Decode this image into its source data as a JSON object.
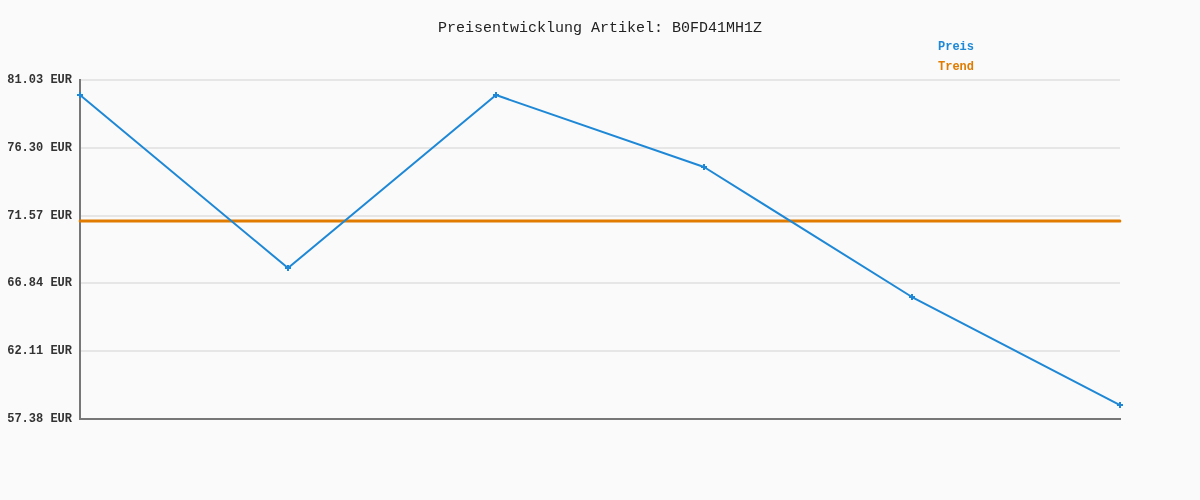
{
  "chart_data": {
    "type": "line",
    "title": "Preisentwicklung Artikel: B0FD41MH1Z",
    "categories": [
      null,
      null,
      null,
      null,
      null,
      null
    ],
    "series": [
      {
        "name": "Preis",
        "color": "#1e88d6",
        "marker": "cross",
        "values": [
          79.98,
          67.91,
          79.98,
          74.96,
          65.89,
          58.35
        ]
      },
      {
        "name": "Trend",
        "color": "#e07b00",
        "values": [
          71.19,
          71.19,
          71.19,
          71.19,
          71.19,
          71.19
        ]
      }
    ],
    "ylim": [
      57.38,
      81.03
    ],
    "yticks": [
      {
        "value": 57.38,
        "label": "57.38 EUR"
      },
      {
        "value": 62.11,
        "label": "62.11 EUR"
      },
      {
        "value": 66.84,
        "label": "66.84 EUR"
      },
      {
        "value": 71.57,
        "label": "71.57 EUR"
      },
      {
        "value": 76.3,
        "label": "76.30 EUR"
      },
      {
        "value": 81.03,
        "label": "81.03 EUR"
      }
    ],
    "grid": "y",
    "legend": "top right",
    "line_style": "solid"
  }
}
